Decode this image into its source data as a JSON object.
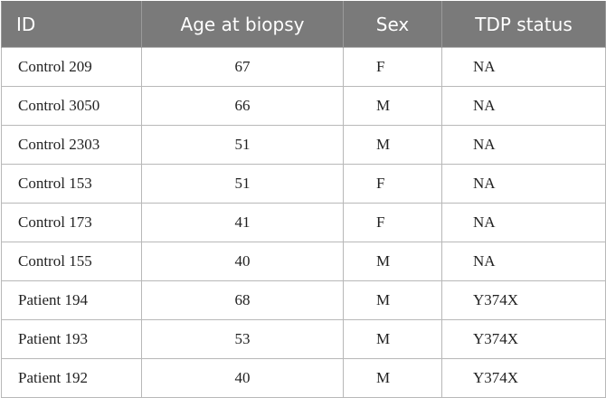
{
  "table": {
    "headers": {
      "id": "ID",
      "age": "Age at biopsy",
      "sex": "Sex",
      "tdp": "TDP status"
    },
    "rows": [
      {
        "id": "Control 209",
        "age": "67",
        "sex": "F",
        "tdp": "NA"
      },
      {
        "id": "Control 3050",
        "age": "66",
        "sex": "M",
        "tdp": "NA"
      },
      {
        "id": "Control 2303",
        "age": "51",
        "sex": "M",
        "tdp": "NA"
      },
      {
        "id": "Control 153",
        "age": "51",
        "sex": "F",
        "tdp": "NA"
      },
      {
        "id": "Control 173",
        "age": "41",
        "sex": "F",
        "tdp": "NA"
      },
      {
        "id": "Control 155",
        "age": "40",
        "sex": "M",
        "tdp": "NA"
      },
      {
        "id": "Patient 194",
        "age": "68",
        "sex": "M",
        "tdp": "Y374X"
      },
      {
        "id": "Patient 193",
        "age": "53",
        "sex": "M",
        "tdp": "Y374X"
      },
      {
        "id": "Patient 192",
        "age": "40",
        "sex": "M",
        "tdp": "Y374X"
      }
    ]
  },
  "colors": {
    "header_background": "#7a7a7a",
    "header_text": "#ffffff",
    "cell_border": "#b8b8b8"
  }
}
